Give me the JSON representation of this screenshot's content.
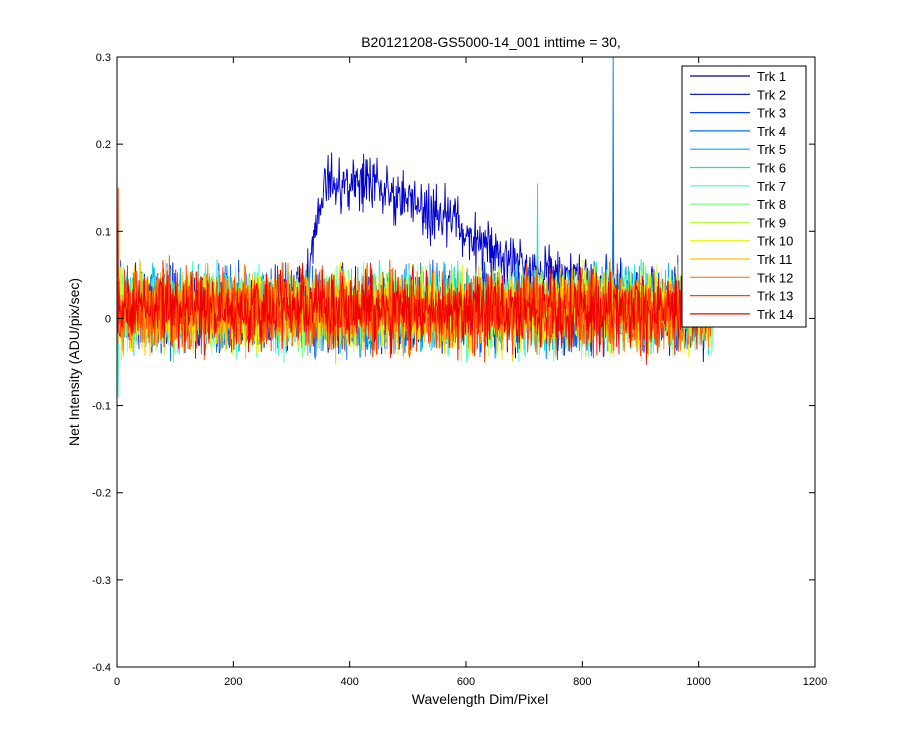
{
  "chart_data": {
    "type": "line",
    "title": "B20121208-GS5000-14_001 inttime = 30,",
    "xlabel": "Wavelength Dim/Pixel",
    "ylabel": "Net Intensity (ADU/pix/sec)",
    "xlim": [
      0,
      1200
    ],
    "ylim": [
      -0.4,
      0.3
    ],
    "x_ticks": [
      0,
      200,
      400,
      600,
      800,
      1000,
      1200
    ],
    "x_tick_labels": [
      "0",
      "200",
      "400",
      "600",
      "800",
      "1000",
      "1200"
    ],
    "y_ticks": [
      -0.4,
      -0.3,
      -0.2,
      -0.1,
      0,
      0.1,
      0.2,
      0.3
    ],
    "y_tick_labels": [
      "-0.4",
      "-0.3",
      "-0.2",
      "-0.1",
      "0",
      "0.1",
      "0.2",
      "0.3"
    ],
    "grid": false,
    "legend_position": "top-right",
    "pixel_range": [
      1,
      1024
    ],
    "series": [
      {
        "name": "Trk 1",
        "color": "#00008F",
        "baseline": 0.01,
        "noise": 0.022,
        "spikes": [
          [
            2,
            0.03
          ]
        ]
      },
      {
        "name": "Trk 2",
        "color": "#0000D0",
        "baseline": 0.01,
        "noise": 0.022,
        "features": [
          [
            320,
            0.0
          ],
          [
            335,
            0.08
          ],
          [
            350,
            0.12
          ],
          [
            365,
            0.15
          ],
          [
            380,
            0.145
          ],
          [
            400,
            0.145
          ],
          [
            420,
            0.15
          ],
          [
            440,
            0.145
          ],
          [
            460,
            0.14
          ],
          [
            480,
            0.13
          ],
          [
            500,
            0.125
          ],
          [
            520,
            0.12
          ],
          [
            540,
            0.11
          ],
          [
            560,
            0.105
          ],
          [
            580,
            0.1
          ],
          [
            600,
            0.09
          ],
          [
            620,
            0.08
          ],
          [
            640,
            0.07
          ],
          [
            660,
            0.065
          ],
          [
            680,
            0.055
          ],
          [
            700,
            0.05
          ],
          [
            720,
            0.045
          ],
          [
            740,
            0.04
          ],
          [
            760,
            0.04
          ],
          [
            780,
            0.04
          ],
          [
            800,
            0.035
          ],
          [
            820,
            0.03
          ],
          [
            850,
            0.03
          ],
          [
            880,
            0.02
          ]
        ],
        "spikes": [
          [
            853,
            0.15
          ]
        ]
      },
      {
        "name": "Trk 3",
        "color": "#0040FF",
        "baseline": 0.01,
        "noise": 0.022,
        "spikes": []
      },
      {
        "name": "Trk 4",
        "color": "#0070FF",
        "baseline": 0.01,
        "noise": 0.022,
        "spikes": [
          [
            853,
            0.3
          ]
        ]
      },
      {
        "name": "Trk 5",
        "color": "#00B0F0",
        "baseline": 0.01,
        "noise": 0.022,
        "spikes": []
      },
      {
        "name": "Trk 6",
        "color": "#10E0E0",
        "baseline": 0.01,
        "noise": 0.022,
        "spikes": [
          [
            723,
            0.155
          ]
        ]
      },
      {
        "name": "Trk 7",
        "color": "#40FFC0",
        "baseline": 0.01,
        "noise": 0.022,
        "spikes": [
          [
            2,
            -0.09
          ]
        ]
      },
      {
        "name": "Trk 8",
        "color": "#80FF80",
        "baseline": 0.01,
        "noise": 0.022,
        "spikes": []
      },
      {
        "name": "Trk 9",
        "color": "#C0FF40",
        "baseline": 0.01,
        "noise": 0.022,
        "spikes": []
      },
      {
        "name": "Trk 10",
        "color": "#F0F000",
        "baseline": 0.01,
        "noise": 0.022,
        "spikes": []
      },
      {
        "name": "Trk 11",
        "color": "#FFC000",
        "baseline": 0.01,
        "noise": 0.022,
        "spikes": []
      },
      {
        "name": "Trk 12",
        "color": "#FF8000",
        "baseline": 0.01,
        "noise": 0.022,
        "spikes": []
      },
      {
        "name": "Trk 13",
        "color": "#FF4000",
        "baseline": 0.01,
        "noise": 0.022,
        "spikes": [
          [
            2,
            0.15
          ]
        ]
      },
      {
        "name": "Trk 14",
        "color": "#EE0000",
        "baseline": 0.01,
        "noise": 0.022,
        "spikes": []
      }
    ]
  }
}
